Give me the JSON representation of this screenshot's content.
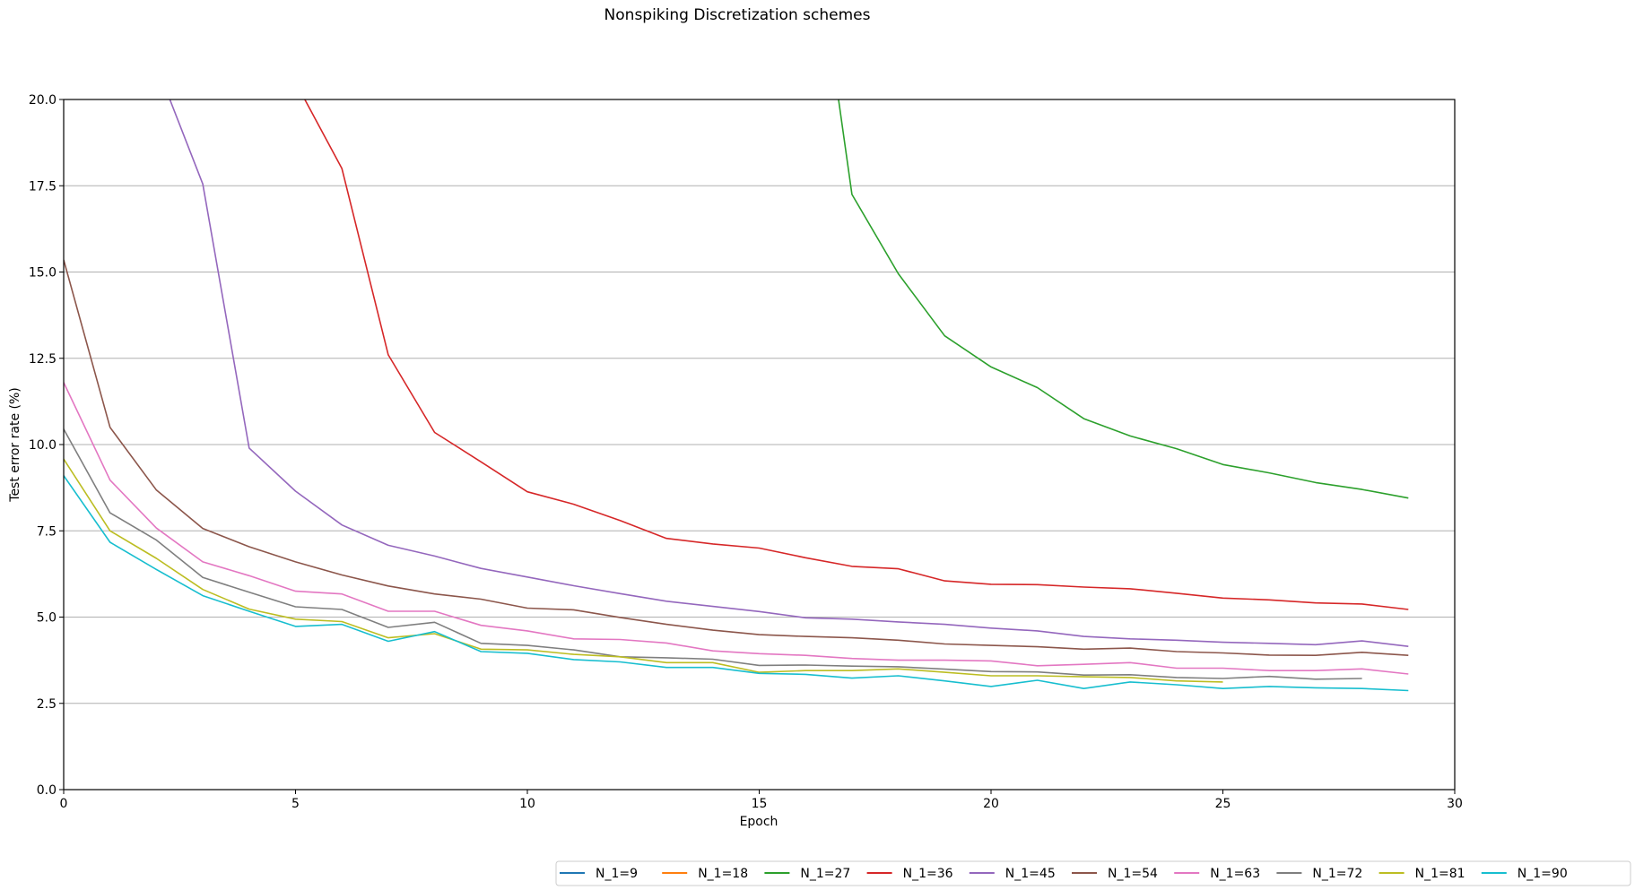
{
  "chart_data": {
    "type": "line",
    "title": "Nonspiking Discretization schemes",
    "xlabel": "Epoch",
    "ylabel": "Test error rate (%)",
    "xlim": [
      0,
      30
    ],
    "ylim": [
      0,
      20
    ],
    "xticks": [
      "0",
      "5",
      "10",
      "15",
      "20",
      "25",
      "30"
    ],
    "yticks": [
      "0.0",
      "2.5",
      "5.0",
      "7.5",
      "10.0",
      "12.5",
      "15.0",
      "17.5",
      "20.0"
    ],
    "grid": "horizontal",
    "legend_position": "bottom-right",
    "series": [
      {
        "name": "N_1=9",
        "color": "#1f77b4",
        "x": [],
        "y": []
      },
      {
        "name": "N_1=18",
        "color": "#ff7f0e",
        "x": [],
        "y": []
      },
      {
        "name": "N_1=27",
        "color": "#2ca02c",
        "x": [
          16.5,
          17,
          18,
          19,
          20,
          21,
          22,
          23,
          24,
          25,
          26,
          27,
          28,
          29
        ],
        "y": [
          22.0,
          17.25,
          14.95,
          13.15,
          12.25,
          11.65,
          10.75,
          10.25,
          9.88,
          9.42,
          9.18,
          8.9,
          8.7,
          8.45
        ]
      },
      {
        "name": "N_1=36",
        "color": "#d62728",
        "x": [
          4.8,
          6,
          7,
          8,
          9,
          10,
          11,
          12,
          13,
          14,
          15,
          16,
          17,
          18,
          19,
          20,
          21,
          22,
          23,
          24,
          25,
          26,
          27,
          28,
          29
        ],
        "y": [
          21.0,
          18.0,
          12.6,
          10.35,
          9.5,
          8.63,
          8.27,
          7.8,
          7.28,
          7.12,
          7.0,
          6.72,
          6.47,
          6.4,
          6.05,
          5.95,
          5.94,
          5.87,
          5.82,
          5.69,
          5.55,
          5.5,
          5.41,
          5.38,
          5.22
        ]
      },
      {
        "name": "N_1=45",
        "color": "#9467bd",
        "x": [
          2,
          3,
          4,
          5,
          6,
          7,
          8,
          9,
          10,
          11,
          12,
          13,
          14,
          15,
          16,
          17,
          18,
          19,
          20,
          21,
          22,
          23,
          24,
          25,
          26,
          27,
          28,
          29
        ],
        "y": [
          21.0,
          17.55,
          9.9,
          8.65,
          7.67,
          7.08,
          6.77,
          6.41,
          6.16,
          5.91,
          5.68,
          5.46,
          5.31,
          5.16,
          4.98,
          4.94,
          4.86,
          4.79,
          4.68,
          4.6,
          4.44,
          4.37,
          4.33,
          4.27,
          4.24,
          4.2,
          4.31,
          4.15
        ]
      },
      {
        "name": "N_1=54",
        "color": "#8c564b",
        "x": [
          0,
          1,
          2,
          3,
          4,
          5,
          6,
          7,
          8,
          9,
          10,
          11,
          12,
          13,
          14,
          15,
          16,
          17,
          18,
          19,
          20,
          21,
          22,
          23,
          24,
          25,
          26,
          27,
          28,
          29
        ],
        "y": [
          15.35,
          10.5,
          8.68,
          7.57,
          7.04,
          6.6,
          6.22,
          5.9,
          5.67,
          5.52,
          5.26,
          5.21,
          4.99,
          4.79,
          4.62,
          4.49,
          4.44,
          4.4,
          4.33,
          4.22,
          4.18,
          4.14,
          4.07,
          4.1,
          4.0,
          3.96,
          3.9,
          3.89,
          3.98,
          3.89
        ]
      },
      {
        "name": "N_1=63",
        "color": "#e377c2",
        "x": [
          0,
          1,
          2,
          3,
          4,
          5,
          6,
          7,
          8,
          9,
          10,
          11,
          12,
          13,
          14,
          15,
          16,
          17,
          18,
          19,
          20,
          21,
          22,
          23,
          24,
          25,
          26,
          27,
          28,
          29
        ],
        "y": [
          11.8,
          8.97,
          7.58,
          6.6,
          6.2,
          5.75,
          5.67,
          5.17,
          5.17,
          4.76,
          4.6,
          4.37,
          4.35,
          4.25,
          4.02,
          3.94,
          3.89,
          3.8,
          3.75,
          3.75,
          3.73,
          3.59,
          3.63,
          3.68,
          3.52,
          3.52,
          3.45,
          3.45,
          3.5,
          3.35
        ]
      },
      {
        "name": "N_1=72",
        "color": "#7f7f7f",
        "x": [
          0,
          1,
          2,
          3,
          4,
          5,
          6,
          7,
          8,
          9,
          10,
          11,
          12,
          13,
          14,
          15,
          16,
          17,
          18,
          19,
          20,
          21,
          22,
          23,
          24,
          25,
          26,
          27,
          28
        ],
        "y": [
          10.45,
          8.02,
          7.23,
          6.15,
          5.72,
          5.3,
          5.22,
          4.7,
          4.85,
          4.24,
          4.18,
          4.05,
          3.85,
          3.82,
          3.78,
          3.6,
          3.61,
          3.58,
          3.56,
          3.49,
          3.42,
          3.41,
          3.32,
          3.33,
          3.25,
          3.22,
          3.28,
          3.2,
          3.22
        ]
      },
      {
        "name": "N_1=81",
        "color": "#bcbd22",
        "x": [
          0,
          1,
          2,
          3,
          4,
          5,
          6,
          7,
          8,
          9,
          10,
          11,
          12,
          13,
          14,
          15,
          16,
          17,
          18,
          19,
          20,
          21,
          22,
          23,
          24,
          25
        ],
        "y": [
          9.58,
          7.5,
          6.7,
          5.8,
          5.23,
          4.94,
          4.87,
          4.4,
          4.52,
          4.07,
          4.05,
          3.92,
          3.85,
          3.68,
          3.68,
          3.4,
          3.45,
          3.45,
          3.5,
          3.4,
          3.3,
          3.3,
          3.27,
          3.25,
          3.15,
          3.12
        ]
      },
      {
        "name": "N_1=90",
        "color": "#17becf",
        "x": [
          0,
          1,
          2,
          3,
          4,
          5,
          6,
          7,
          8,
          9,
          10,
          11,
          12,
          13,
          14,
          15,
          16,
          17,
          18,
          19,
          20,
          21,
          22,
          23,
          24,
          25,
          26,
          27,
          28,
          29
        ],
        "y": [
          9.1,
          7.17,
          6.38,
          5.62,
          5.17,
          4.73,
          4.79,
          4.3,
          4.58,
          4.0,
          3.95,
          3.77,
          3.7,
          3.54,
          3.54,
          3.37,
          3.34,
          3.23,
          3.3,
          3.15,
          2.99,
          3.17,
          2.93,
          3.12,
          3.04,
          2.93,
          2.99,
          2.95,
          2.93,
          2.87
        ]
      }
    ]
  }
}
